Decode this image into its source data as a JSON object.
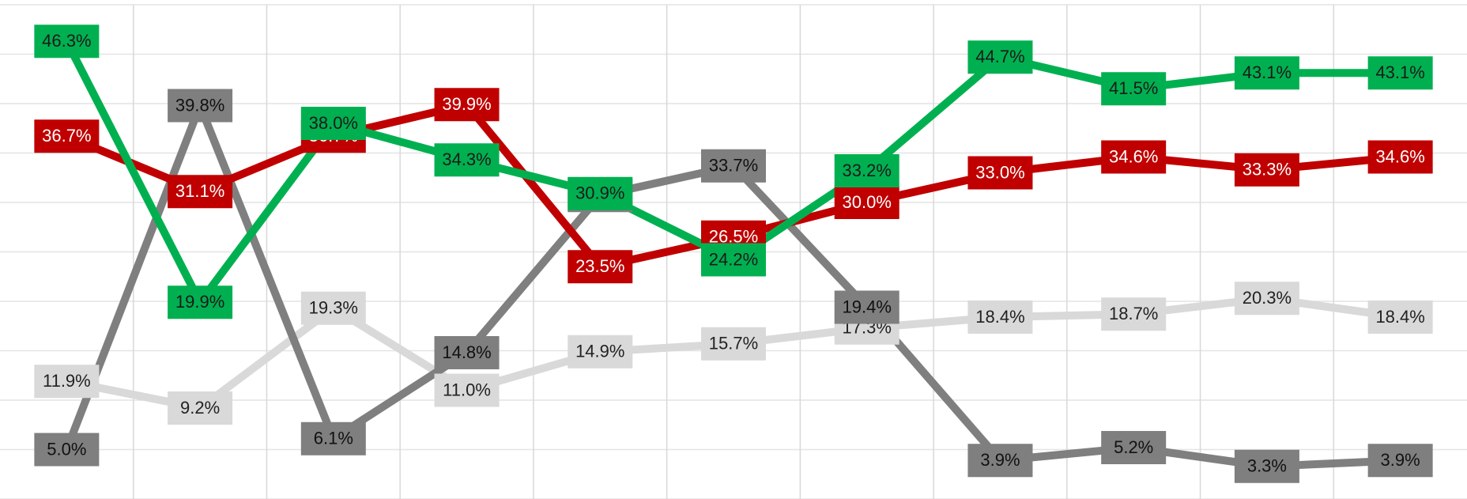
{
  "chart_data": {
    "type": "line",
    "categories": [
      null,
      null,
      null,
      null,
      null,
      null,
      null,
      null,
      null,
      null,
      null
    ],
    "ylim": [
      0,
      50
    ],
    "yticks": [
      0,
      5,
      10,
      15,
      20,
      25,
      30,
      35,
      40,
      45,
      50
    ],
    "grid": true,
    "series": [
      {
        "color": "#00b050",
        "label_color": "#1a1a1a",
        "values": [
          46.3,
          19.9,
          38.0,
          34.3,
          30.9,
          24.2,
          33.2,
          44.7,
          41.5,
          43.1,
          43.1
        ],
        "value_labels": [
          "46.3%",
          "19.9%",
          "38.0%",
          "34.3%",
          "30.9%",
          "24.2%",
          "33.2%",
          "44.7%",
          "41.5%",
          "43.1%",
          "43.1%"
        ]
      },
      {
        "color": "#c00000",
        "label_color": "#ffffff",
        "values": [
          36.7,
          31.1,
          36.7,
          39.9,
          23.5,
          26.5,
          30.0,
          33.0,
          34.6,
          33.3,
          34.6
        ],
        "value_labels": [
          "36.7%",
          "31.1%",
          "36.7%",
          "39.9%",
          "23.5%",
          "26.5%",
          "30.0%",
          "33.0%",
          "34.6%",
          "33.3%",
          "34.6%"
        ]
      },
      {
        "color": "#7f7f7f",
        "label_color": "#111111",
        "values": [
          5.0,
          39.8,
          6.1,
          14.8,
          30.7,
          33.7,
          19.4,
          3.9,
          5.2,
          3.3,
          3.9
        ],
        "value_labels": [
          "5.0%",
          "39.8%",
          "6.1%",
          "14.8%",
          "30.7%",
          "33.7%",
          "19.4%",
          "3.9%",
          "5.2%",
          "3.3%",
          "3.9%"
        ]
      },
      {
        "color": "#d9d9d9",
        "label_color": "#222222",
        "values": [
          11.9,
          9.2,
          19.3,
          11.0,
          14.9,
          15.7,
          17.3,
          18.4,
          18.7,
          20.3,
          18.4
        ],
        "value_labels": [
          "11.9%",
          "9.2%",
          "19.3%",
          "11.0%",
          "14.9%",
          "15.7%",
          "17.3%",
          "18.4%",
          "18.7%",
          "20.3%",
          "18.4%"
        ]
      }
    ]
  }
}
